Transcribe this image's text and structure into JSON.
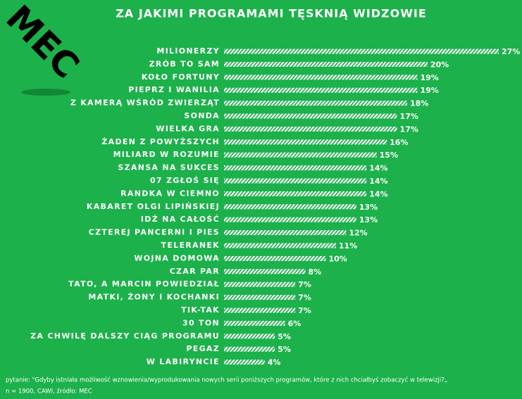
{
  "logo": "MEC",
  "chart_data": {
    "type": "bar",
    "orientation": "horizontal",
    "title": "ZA JAKIMI PROGRAMAMI TĘSKNIĄ WIDZOWIE",
    "categories": [
      "MILIONERZY",
      "ZRÓB TO SAM",
      "KOŁO FORTUNY",
      "PIEPRZ I WANILIA",
      "Z KAMERĄ WŚRÓD ZWIERZĄT",
      "SONDA",
      "WIELKA GRA",
      "ŻADEN Z POWYŻSZYCH",
      "MILIARD W ROZUMIE",
      "SZANSA NA SUKCES",
      "07 ZGŁOŚ SIĘ",
      "RANDKA W CIEMNO",
      "KABARET OLGI LIPIŃSKIEJ",
      "IDŹ NA CAŁOŚĆ",
      "CZTEREJ PANCERNI I PIES",
      "TELERANEK",
      "WOJNA DOMOWA",
      "CZAR PAR",
      "TATO, A MARCIN POWIEDZIAŁ",
      "MATKI, ŻONY I KOCHANKI",
      "TIK-TAK",
      "30 TON",
      "ZA CHWILĘ DALSZY CIĄG PROGRAMU",
      "PEGAZ",
      "W LABIRYNCIE"
    ],
    "values": [
      27,
      20,
      19,
      19,
      18,
      17,
      17,
      16,
      15,
      14,
      14,
      14,
      13,
      13,
      12,
      11,
      10,
      8,
      7,
      7,
      7,
      6,
      5,
      5,
      4
    ],
    "value_labels": [
      "27%",
      "20%",
      "19%",
      "19%",
      "18%",
      "17%",
      "17%",
      "16%",
      "15%",
      "14%",
      "14%",
      "14%",
      "13%",
      "13%",
      "12%",
      "11%",
      "10%",
      "8%",
      "7%",
      "7%",
      "7%",
      "6%",
      "5%",
      "5%",
      "4%"
    ],
    "color": "#ffffff",
    "notes": [
      "pytanie: \"Gdyby istniała możliwość  wznowienia/wyprodukowania  nowych serii poniższych programów,  które z nich chciałbyś zobaczyć w  telewizji?„",
      "n = 1900, CAWI,  źródło: MEC"
    ]
  }
}
